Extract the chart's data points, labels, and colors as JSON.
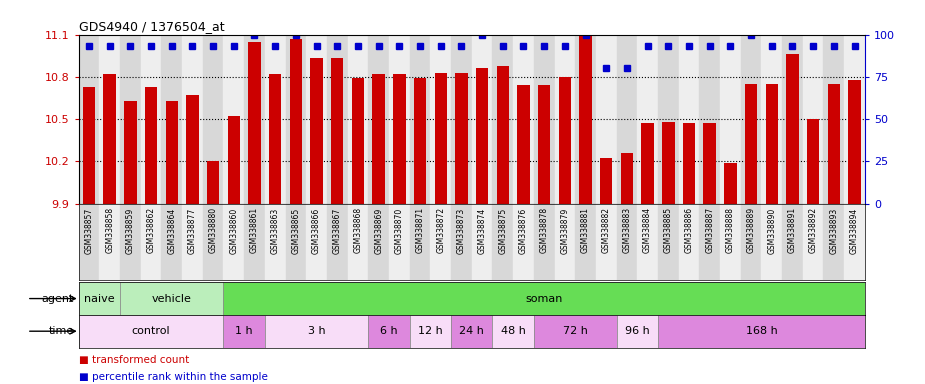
{
  "title": "GDS4940 / 1376504_at",
  "samples": [
    "GSM338857",
    "GSM338858",
    "GSM338859",
    "GSM338862",
    "GSM338864",
    "GSM338877",
    "GSM338880",
    "GSM338860",
    "GSM338861",
    "GSM338863",
    "GSM338865",
    "GSM338866",
    "GSM338867",
    "GSM338868",
    "GSM338869",
    "GSM338870",
    "GSM338871",
    "GSM338872",
    "GSM338873",
    "GSM338874",
    "GSM338875",
    "GSM338876",
    "GSM338878",
    "GSM338879",
    "GSM338881",
    "GSM338882",
    "GSM338883",
    "GSM338884",
    "GSM338885",
    "GSM338886",
    "GSM338887",
    "GSM338888",
    "GSM338889",
    "GSM338890",
    "GSM338891",
    "GSM338892",
    "GSM338893",
    "GSM338894"
  ],
  "bar_values": [
    10.73,
    10.82,
    10.63,
    10.73,
    10.63,
    10.67,
    10.2,
    10.52,
    11.05,
    10.82,
    11.07,
    10.93,
    10.93,
    10.79,
    10.82,
    10.82,
    10.79,
    10.83,
    10.83,
    10.86,
    10.88,
    10.74,
    10.74,
    10.8,
    11.09,
    10.22,
    10.26,
    10.47,
    10.48,
    10.47,
    10.47,
    10.19,
    10.75,
    10.75,
    10.96,
    10.5,
    10.75,
    10.78
  ],
  "percentile_values": [
    93,
    93,
    93,
    93,
    93,
    93,
    93,
    93,
    100,
    93,
    100,
    93,
    93,
    93,
    93,
    93,
    93,
    93,
    93,
    100,
    93,
    93,
    93,
    93,
    100,
    80,
    80,
    93,
    93,
    93,
    93,
    93,
    100,
    93,
    93,
    93,
    93,
    93
  ],
  "ylim": [
    9.9,
    11.1
  ],
  "yticks": [
    9.9,
    10.2,
    10.5,
    10.8,
    11.1
  ],
  "ytick_labels": [
    "9.9",
    "10.2",
    "10.5",
    "10.8",
    "11.1"
  ],
  "right_yticks": [
    0,
    25,
    50,
    75,
    100
  ],
  "right_ytick_labels": [
    "0",
    "25",
    "50",
    "75",
    "100"
  ],
  "bar_color": "#cc0000",
  "dot_color": "#0000cc",
  "grid_yticks": [
    10.2,
    10.5,
    10.8
  ],
  "agent_groups": [
    {
      "label": "naive",
      "start": 0,
      "end": 2,
      "color": "#bbeebb"
    },
    {
      "label": "vehicle",
      "start": 2,
      "end": 7,
      "color": "#bbeebb"
    },
    {
      "label": "soman",
      "start": 7,
      "end": 38,
      "color": "#66dd55"
    }
  ],
  "time_groups": [
    {
      "label": "control",
      "start": 0,
      "end": 7,
      "color": "#f8ddf8"
    },
    {
      "label": "1 h",
      "start": 7,
      "end": 9,
      "color": "#dd88dd"
    },
    {
      "label": "3 h",
      "start": 9,
      "end": 14,
      "color": "#f8ddf8"
    },
    {
      "label": "6 h",
      "start": 14,
      "end": 16,
      "color": "#dd88dd"
    },
    {
      "label": "12 h",
      "start": 16,
      "end": 18,
      "color": "#f8ddf8"
    },
    {
      "label": "24 h",
      "start": 18,
      "end": 20,
      "color": "#dd88dd"
    },
    {
      "label": "48 h",
      "start": 20,
      "end": 22,
      "color": "#f8ddf8"
    },
    {
      "label": "72 h",
      "start": 22,
      "end": 26,
      "color": "#dd88dd"
    },
    {
      "label": "96 h",
      "start": 26,
      "end": 28,
      "color": "#f8ddf8"
    },
    {
      "label": "168 h",
      "start": 28,
      "end": 38,
      "color": "#dd88dd"
    }
  ],
  "bg_color": "#eeeeee",
  "legend_items": [
    {
      "color": "#cc0000",
      "label": "transformed count"
    },
    {
      "color": "#0000cc",
      "label": "percentile rank within the sample"
    }
  ]
}
